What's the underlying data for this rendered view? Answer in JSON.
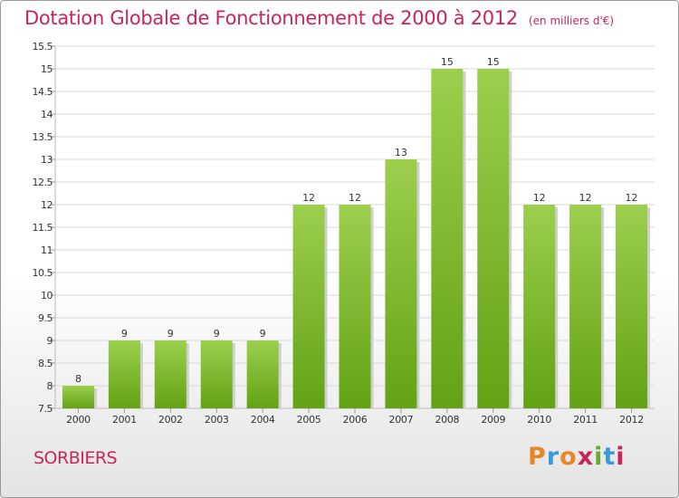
{
  "header": {
    "title": "Dotation Globale de Fonctionnement de 2000 à 2012",
    "unit": "(en milliers d'€)"
  },
  "footer": {
    "commune": "SORBIERS",
    "brand_letters": [
      "P",
      "r",
      "o",
      "x",
      "i",
      "t",
      "i"
    ],
    "brand_colors": [
      "#e8862a",
      "#3a9ad9",
      "#e8862a",
      "#c8265a",
      "#6aaa2a",
      "#3a9ad9",
      "#c8265a"
    ]
  },
  "colors": {
    "bar_top": "#9ccf4e",
    "bar_bottom": "#62a214",
    "grid": "#d8d8d8",
    "axis_text": "#333333"
  },
  "chart_data": {
    "type": "bar",
    "title": "Dotation Globale de Fonctionnement de 2000 à 2012",
    "subtitle": "(en milliers d'€)",
    "categories": [
      "2000",
      "2001",
      "2002",
      "2003",
      "2004",
      "2005",
      "2006",
      "2007",
      "2008",
      "2009",
      "2010",
      "2011",
      "2012"
    ],
    "values": [
      8,
      9,
      9,
      9,
      9,
      12,
      12,
      13,
      15,
      15,
      12,
      12,
      12
    ],
    "ylim": [
      7.5,
      15.5
    ],
    "yticks": [
      "7.5",
      "8",
      "8.5",
      "9",
      "9.5",
      "10",
      "10.5",
      "11",
      "11.5",
      "12",
      "12.5",
      "13",
      "13.5",
      "14",
      "14.5",
      "15",
      "15.5"
    ],
    "grid": true,
    "xlabel": "",
    "ylabel": ""
  }
}
